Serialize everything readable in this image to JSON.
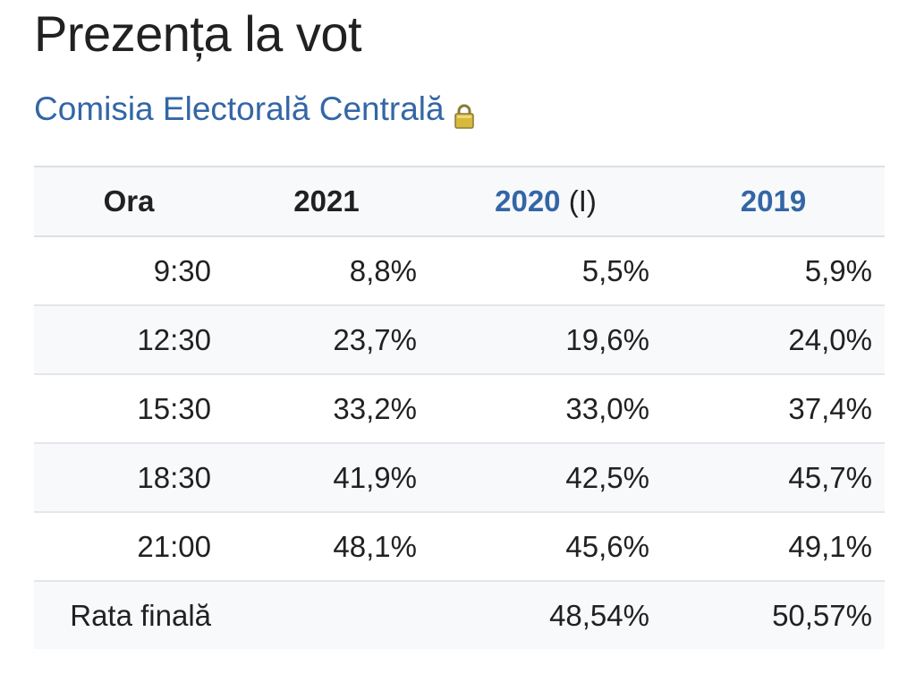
{
  "page_title": "Prezența la vot",
  "source_link": "Comisia Electorală Centrală",
  "icons": {
    "source_lock": "lock-icon"
  },
  "colors": {
    "link": "#3366a6",
    "header_bg": "#f8f9fa",
    "text": "#202122"
  },
  "table": {
    "headers": {
      "hour": "Ora",
      "y2021": "2021",
      "y2020": "2020",
      "y2020_note": "(I)",
      "y2019": "2019"
    },
    "rows": [
      {
        "hour": "9:30",
        "y2021": "8,8%",
        "y2020": "5,5%",
        "y2019": "5,9%"
      },
      {
        "hour": "12:30",
        "y2021": "23,7%",
        "y2020": "19,6%",
        "y2019": "24,0%"
      },
      {
        "hour": "15:30",
        "y2021": "33,2%",
        "y2020": "33,0%",
        "y2019": "37,4%"
      },
      {
        "hour": "18:30",
        "y2021": "41,9%",
        "y2020": "42,5%",
        "y2019": "45,7%"
      },
      {
        "hour": "21:00",
        "y2021": "48,1%",
        "y2020": "45,6%",
        "y2019": "49,1%"
      }
    ],
    "final": {
      "label": "Rata finală",
      "y2021": "",
      "y2020": "48,54%",
      "y2019": "50,57%"
    }
  }
}
